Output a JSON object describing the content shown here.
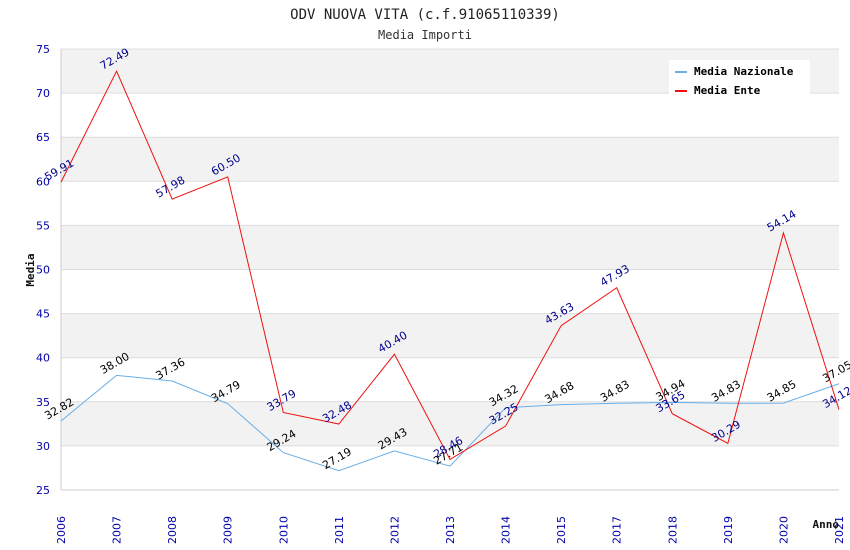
{
  "chart_data": {
    "type": "line",
    "title": "ODV NUOVA VITA (c.f.91065110339)",
    "subtitle": "Media Importi",
    "xlabel": "Anno",
    "ylabel": "Media",
    "ylim": [
      25,
      75
    ],
    "yticks": [
      25,
      30,
      35,
      40,
      45,
      50,
      55,
      60,
      65,
      70,
      75
    ],
    "categories": [
      "2006",
      "2007",
      "2008",
      "2009",
      "2010",
      "2011",
      "2012",
      "2013",
      "2014",
      "2015",
      "2017",
      "2018",
      "2019",
      "2020",
      "2021"
    ],
    "series": [
      {
        "name": "Media Nazionale",
        "color": "#6aaee6",
        "label_color": "#000000",
        "values": [
          32.82,
          38.0,
          37.36,
          34.79,
          29.24,
          27.19,
          29.43,
          27.71,
          34.32,
          34.68,
          34.83,
          34.94,
          34.83,
          34.85,
          37.05
        ],
        "labels": [
          "32.82",
          "38.00",
          "37.36",
          "34.79",
          "29.24",
          "27.19",
          "29.43",
          "27.71",
          "34.32",
          "34.68",
          "34.83",
          "34.94",
          "34.83",
          "34.85",
          "37.05"
        ]
      },
      {
        "name": "Media Ente",
        "color": "#ee1111",
        "label_color": "#00008b",
        "values": [
          59.91,
          72.49,
          57.98,
          60.5,
          33.79,
          32.48,
          40.4,
          28.46,
          32.25,
          43.63,
          47.93,
          33.65,
          30.29,
          54.14,
          34.12
        ],
        "labels": [
          "59.91",
          "72.49",
          "57.98",
          "60.50",
          "33.79",
          "32.48",
          "40.40",
          "28.46",
          "32.25",
          "43.63",
          "47.93",
          "33.65",
          "30.29",
          "54.14",
          "34.12"
        ]
      }
    ],
    "legend_position": "top-right",
    "grid": true
  }
}
